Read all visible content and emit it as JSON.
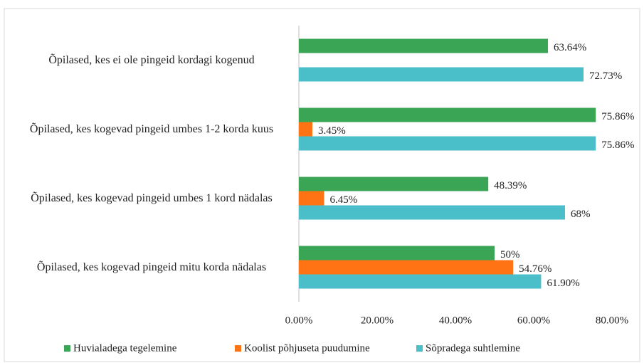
{
  "chart_data": {
    "type": "bar",
    "orientation": "horizontal",
    "categories": [
      "Õpilased, kes ei ole pingeid kordagi kogenud",
      "Õpilased, kes kogevad pingeid umbes 1-2 korda kuus",
      "Õpilased, kes kogevad pingeid umbes 1 kord nädalas",
      "Õpilased, kes kogevad pingeid mitu korda nädalas"
    ],
    "series": [
      {
        "name": "Huvialadega tegelemine",
        "color": "#3aa655",
        "values": [
          63.64,
          75.86,
          48.39,
          50
        ],
        "value_labels": [
          "63.64%",
          "75.86%",
          "48.39%",
          "50%"
        ]
      },
      {
        "name": "Koolist põhjuseta puudumine",
        "color": "#ff7315",
        "values": [
          null,
          3.45,
          6.45,
          54.76
        ],
        "value_labels": [
          null,
          "3.45%",
          "6.45%",
          "54.76%"
        ]
      },
      {
        "name": "Sõpradega suhtlemine",
        "color": "#4bbfc9",
        "values": [
          72.73,
          75.86,
          68,
          61.9
        ],
        "value_labels": [
          "72.73%",
          "75.86%",
          "68%",
          "61.90%"
        ]
      }
    ],
    "xlim": [
      0,
      80
    ],
    "xticks": [
      {
        "value": 0,
        "label": "0.00%"
      },
      {
        "value": 20,
        "label": "20.00%"
      },
      {
        "value": 40,
        "label": "40.00%"
      },
      {
        "value": 60,
        "label": "60.00%"
      },
      {
        "value": 80,
        "label": "80.00%"
      }
    ],
    "grid": false,
    "legend": "bottom"
  }
}
